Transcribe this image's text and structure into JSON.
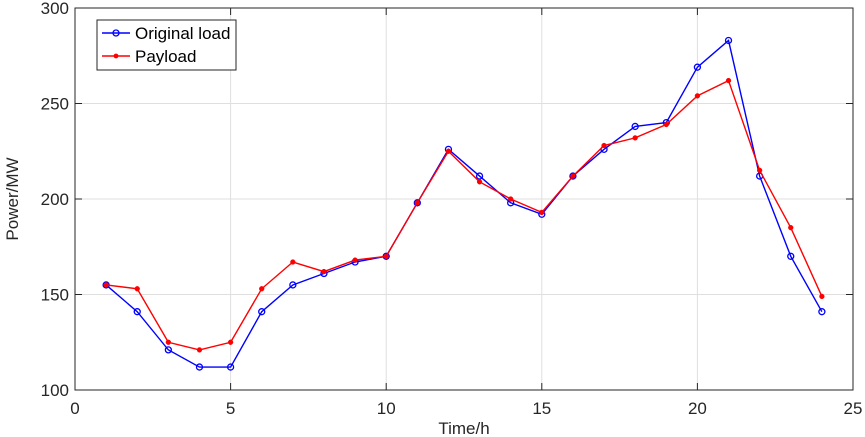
{
  "chart_data": {
    "type": "line",
    "xlabel": "Time/h",
    "ylabel": "Power/MW",
    "xlim": [
      0,
      25
    ],
    "ylim": [
      100,
      300
    ],
    "xticks": [
      0,
      5,
      10,
      15,
      20,
      25
    ],
    "yticks": [
      100,
      150,
      200,
      250,
      300
    ],
    "grid": true,
    "legend_position": "top-left",
    "x": [
      1,
      2,
      3,
      4,
      5,
      6,
      7,
      8,
      9,
      10,
      11,
      12,
      13,
      14,
      15,
      16,
      17,
      18,
      19,
      20,
      21,
      22,
      23,
      24
    ],
    "series": [
      {
        "name": "Original load",
        "color": "#0000ff",
        "marker": "circle",
        "values": [
          155,
          141,
          121,
          112,
          112,
          141,
          155,
          161,
          167,
          170,
          198,
          226,
          212,
          198,
          192,
          212,
          226,
          238,
          240,
          269,
          283,
          212,
          170,
          141
        ]
      },
      {
        "name": "Payload",
        "color": "#ff0000",
        "marker": "dot",
        "values": [
          155,
          153,
          125,
          121,
          125,
          153,
          167,
          162,
          168,
          170,
          198,
          225,
          209,
          200,
          193,
          212,
          228,
          232,
          239,
          254,
          262,
          215,
          185,
          149
        ]
      }
    ]
  }
}
